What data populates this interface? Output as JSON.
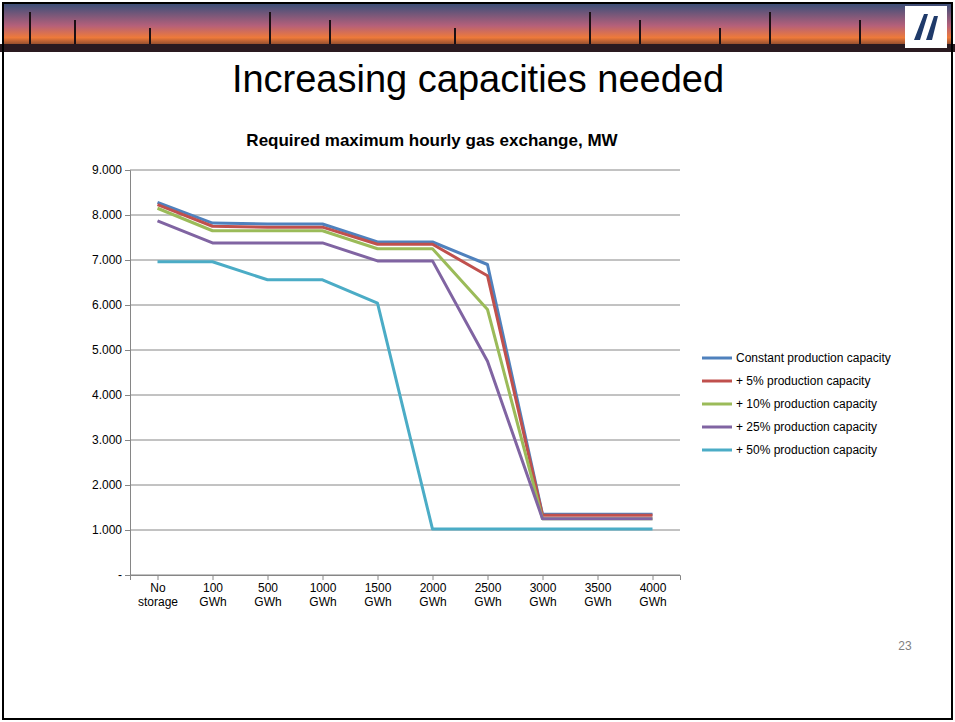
{
  "slide": {
    "heading": "Increasing capacities needed",
    "page_number": "23"
  },
  "chart_data": {
    "type": "line",
    "title": "Required maximum hourly gas exchange, MW",
    "categories": [
      "No storage",
      "100 GWh",
      "500 GWh",
      "1000 GWh",
      "1500 GWh",
      "2000 GWh",
      "2500 GWh",
      "3000 GWh",
      "3500 GWh",
      "4000 GWh"
    ],
    "series": [
      {
        "name": "Constant production capacity",
        "color": "#4f81bd",
        "values": [
          8280,
          7820,
          7800,
          7800,
          7400,
          7400,
          6900,
          1350,
          1350,
          1350
        ]
      },
      {
        "name": "+ 5% production capacity",
        "color": "#c0504d",
        "values": [
          8230,
          7750,
          7730,
          7730,
          7350,
          7350,
          6650,
          1330,
          1330,
          1330
        ]
      },
      {
        "name": "+ 10% production capacity",
        "color": "#9bbb59",
        "values": [
          8150,
          7650,
          7650,
          7650,
          7250,
          7250,
          5900,
          1250,
          1250,
          1250
        ]
      },
      {
        "name": "+ 25% production capacity",
        "color": "#8064a2",
        "values": [
          7870,
          7380,
          7380,
          7380,
          6980,
          6980,
          4750,
          1250,
          1250,
          1250
        ]
      },
      {
        "name": "+ 50% production capacity",
        "color": "#4bacc6",
        "values": [
          6960,
          6960,
          6560,
          6560,
          6040,
          1020,
          1020,
          1020,
          1020,
          1020
        ]
      }
    ],
    "ylim": [
      0,
      9000
    ],
    "yticks": [
      {
        "value": 0,
        "label": "-"
      },
      {
        "value": 1000,
        "label": "1.000"
      },
      {
        "value": 2000,
        "label": "2.000"
      },
      {
        "value": 3000,
        "label": "3.000"
      },
      {
        "value": 4000,
        "label": "4.000"
      },
      {
        "value": 5000,
        "label": "5.000"
      },
      {
        "value": 6000,
        "label": "6.000"
      },
      {
        "value": 7000,
        "label": "7.000"
      },
      {
        "value": 8000,
        "label": "8.000"
      },
      {
        "value": 9000,
        "label": "9.000"
      }
    ],
    "grid": true,
    "legend": "right"
  }
}
